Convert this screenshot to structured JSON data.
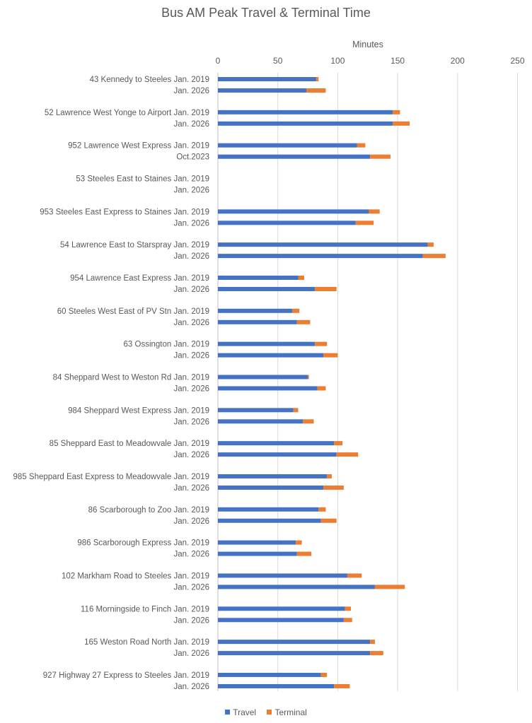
{
  "chart_data": {
    "type": "bar",
    "orientation": "horizontal",
    "stacked": true,
    "title": "Bus AM Peak Travel & Terminal Time",
    "xlabel": "Minutes",
    "ylabel": "",
    "xlim": [
      0,
      250
    ],
    "x_ticks": [
      "0",
      "50",
      "100",
      "150",
      "200",
      "250"
    ],
    "x_axis_position": "top",
    "grid": true,
    "legend_position": "bottom",
    "series": [
      {
        "name": "Travel",
        "color": "#4472C4"
      },
      {
        "name": "Terminal",
        "color": "#ED7D31"
      }
    ],
    "groups": [
      {
        "route": "43 Kennedy to Steeles",
        "rows": [
          {
            "period": "Jan. 2019",
            "travel": 82,
            "terminal": 2
          },
          {
            "period": "Jan. 2026",
            "travel": 74,
            "terminal": 16
          }
        ]
      },
      {
        "route": "52 Lawrence West Yonge to Airport",
        "rows": [
          {
            "period": "Jan. 2019",
            "travel": 146,
            "terminal": 6
          },
          {
            "period": "Jan. 2026",
            "travel": 146,
            "terminal": 14
          }
        ]
      },
      {
        "route": "952 Lawrence West Express",
        "rows": [
          {
            "period": "Jan. 2019",
            "travel": 116,
            "terminal": 7
          },
          {
            "period": "Oct.2023",
            "travel": 127,
            "terminal": 17
          }
        ]
      },
      {
        "route": "53 Steeles East to Staines",
        "rows": [
          {
            "period": "Jan. 2019",
            "travel": null,
            "terminal": null
          },
          {
            "period": "Jan. 2026",
            "travel": null,
            "terminal": null
          }
        ]
      },
      {
        "route": "953 Steeles East Express to Staines",
        "rows": [
          {
            "period": "Jan. 2019",
            "travel": 126,
            "terminal": 9
          },
          {
            "period": "Jan. 2026",
            "travel": 115,
            "terminal": 15
          }
        ]
      },
      {
        "route": "54 Lawrence East to Starspray",
        "rows": [
          {
            "period": "Jan. 2019",
            "travel": 175,
            "terminal": 5
          },
          {
            "period": "Jan. 2026",
            "travel": 171,
            "terminal": 19
          }
        ]
      },
      {
        "route": "954 Lawrence East Express",
        "rows": [
          {
            "period": "Jan. 2019",
            "travel": 67,
            "terminal": 5
          },
          {
            "period": "Jan. 2026",
            "travel": 81,
            "terminal": 18
          }
        ]
      },
      {
        "route": "60 Steeles West East of PV Stn",
        "rows": [
          {
            "period": "Jan. 2019",
            "travel": 62,
            "terminal": 6
          },
          {
            "period": "Jan. 2026",
            "travel": 66,
            "terminal": 11
          }
        ]
      },
      {
        "route": "63 Ossington",
        "rows": [
          {
            "period": "Jan. 2019",
            "travel": 81,
            "terminal": 10
          },
          {
            "period": "Jan. 2026",
            "travel": 88,
            "terminal": 12
          }
        ]
      },
      {
        "route": "84 Sheppard West to Weston Rd",
        "rows": [
          {
            "period": "Jan. 2019",
            "travel": 75,
            "terminal": 1
          },
          {
            "period": "Jan. 2026",
            "travel": 83,
            "terminal": 7
          }
        ]
      },
      {
        "route": "984 Sheppard West Express",
        "rows": [
          {
            "period": "Jan. 2019",
            "travel": 63,
            "terminal": 4
          },
          {
            "period": "Jan. 2026",
            "travel": 71,
            "terminal": 9
          }
        ]
      },
      {
        "route": "85 Sheppard East to Meadowvale",
        "rows": [
          {
            "period": "Jan. 2019",
            "travel": 97,
            "terminal": 7
          },
          {
            "period": "Jan. 2026",
            "travel": 99,
            "terminal": 18
          }
        ]
      },
      {
        "route": "985 Sheppard East Express to Meadowvale",
        "rows": [
          {
            "period": "Jan. 2019",
            "travel": 91,
            "terminal": 4
          },
          {
            "period": "Jan. 2026",
            "travel": 88,
            "terminal": 17
          }
        ]
      },
      {
        "route": "86 Scarborough to Zoo",
        "rows": [
          {
            "period": "Jan. 2019",
            "travel": 84,
            "terminal": 6
          },
          {
            "period": "Jan. 2026",
            "travel": 86,
            "terminal": 13
          }
        ]
      },
      {
        "route": "986 Scarborough Express",
        "rows": [
          {
            "period": "Jan. 2019",
            "travel": 65,
            "terminal": 5
          },
          {
            "period": "Jan. 2026",
            "travel": 66,
            "terminal": 12
          }
        ]
      },
      {
        "route": "102 Markham Road to Steeles",
        "rows": [
          {
            "period": "Jan. 2019",
            "travel": 108,
            "terminal": 12
          },
          {
            "period": "Jan. 2026",
            "travel": 131,
            "terminal": 25
          }
        ]
      },
      {
        "route": "116 Morningside to Finch",
        "rows": [
          {
            "period": "Jan. 2019",
            "travel": 106,
            "terminal": 5
          },
          {
            "period": "Jan. 2026",
            "travel": 105,
            "terminal": 7
          }
        ]
      },
      {
        "route": "165 Weston Road North",
        "rows": [
          {
            "period": "Jan. 2019",
            "travel": 127,
            "terminal": 4
          },
          {
            "period": "Jan. 2026",
            "travel": 127,
            "terminal": 11
          }
        ]
      },
      {
        "route": "927 Highway 27 Express to Steeles",
        "rows": [
          {
            "period": "Jan. 2019",
            "travel": 86,
            "terminal": 5
          },
          {
            "period": "Jan. 2026",
            "travel": 97,
            "terminal": 13
          }
        ]
      }
    ]
  }
}
